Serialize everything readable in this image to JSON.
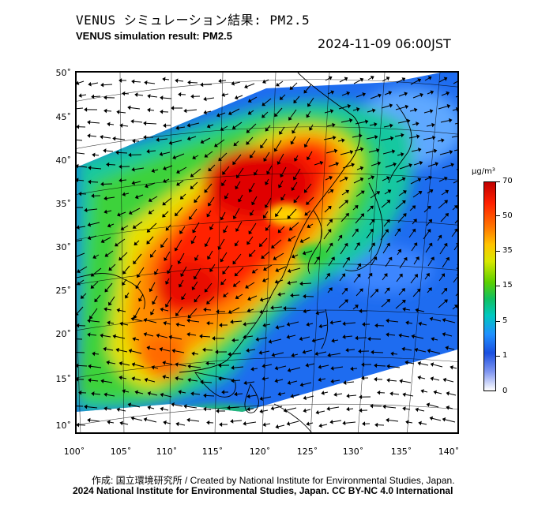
{
  "header": {
    "title_jp": "VENUS シミュレーション結果: PM2.5",
    "title_en": "VENUS simulation result: PM2.5",
    "timestamp": "2024-11-09 06:00JST"
  },
  "map": {
    "lon_range": [
      100,
      141
    ],
    "lat_range": [
      9,
      51
    ],
    "lat_ticks": [
      "50˚",
      "45˚",
      "40˚",
      "35˚",
      "30˚",
      "25˚",
      "20˚",
      "15˚",
      "10˚"
    ],
    "lon_ticks": [
      "100˚",
      "105˚",
      "110˚",
      "115˚",
      "120˚",
      "125˚",
      "130˚",
      "135˚",
      "140˚"
    ],
    "variable": "PM2.5 concentration",
    "overlay": "wind vector arrows"
  },
  "colorbar": {
    "unit": "μg/m³",
    "labels": [
      "70",
      "50",
      "35",
      "15",
      "5",
      "1",
      "0"
    ],
    "colors": {
      "70": "#c00000",
      "50": "#ff7a00",
      "35": "#d8e800",
      "15": "#10c060",
      "5": "#2090ff",
      "1": "#1a4fe0",
      "0": "#ffffff"
    }
  },
  "footer": {
    "credit_line": "作成: 国立環境研究所 / Created by National Institute for Environmental Studies, Japan.",
    "copyright_line": "2024 National Institute for Environmental Studies, Japan. CC BY-NC 4.0 International"
  }
}
